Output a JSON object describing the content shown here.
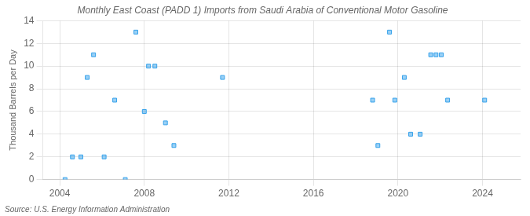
{
  "chart_data": {
    "type": "scatter",
    "title": "Monthly East Coast (PADD 1) Imports from Saudi Arabia of Conventional Motor Gasoline",
    "ylabel": "Thousand Barrels per Day",
    "annotations": [
      "Source: U.S. Energy Information Administration"
    ],
    "x": [
      2004.25,
      2004.6,
      2005.0,
      2005.3,
      2005.6,
      2006.1,
      2006.6,
      2007.1,
      2007.6,
      2008.0,
      2008.2,
      2008.5,
      2009.0,
      2009.4,
      2011.7,
      2018.8,
      2019.05,
      2019.6,
      2019.85,
      2020.3,
      2020.6,
      2021.05,
      2021.55,
      2021.8,
      2022.05,
      2022.35,
      2024.1
    ],
    "values": [
      0,
      2,
      2,
      9,
      11,
      2,
      7,
      0,
      13,
      6,
      10,
      10,
      5,
      3,
      9,
      7,
      3,
      13,
      7,
      9,
      4,
      4,
      11,
      11,
      11,
      7,
      7
    ],
    "marker": "square",
    "xlim": [
      2003.2,
      2025.8
    ],
    "xticks": [
      2004,
      2008,
      2012,
      2016,
      2020,
      2024
    ],
    "ylim": [
      0,
      14
    ],
    "yticks": [
      0,
      2,
      4,
      6,
      8,
      10,
      12,
      14
    ],
    "grid": true
  }
}
